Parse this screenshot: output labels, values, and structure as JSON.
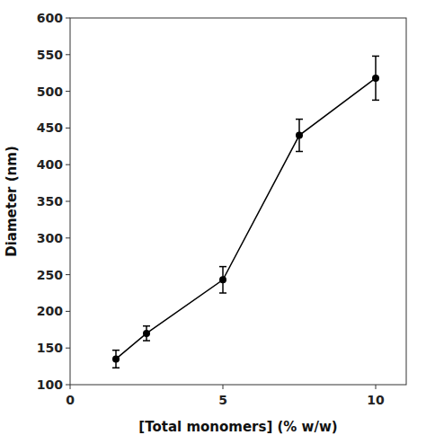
{
  "chart_data": {
    "type": "line",
    "x": [
      1.5,
      2.5,
      5.0,
      7.5,
      10.0
    ],
    "values": [
      135,
      170,
      243,
      440,
      518
    ],
    "errors": [
      12,
      10,
      18,
      22,
      30
    ],
    "xlabel": "[Total monomers] (% w/w)",
    "ylabel": "Diameter (nm)",
    "xlim": [
      0,
      11
    ],
    "ylim": [
      100,
      600
    ],
    "xticks": [
      0,
      5,
      10
    ],
    "yticks": [
      100,
      150,
      200,
      250,
      300,
      350,
      400,
      450,
      500,
      550,
      600
    ],
    "color": "#000000",
    "marker": "circle",
    "grid": false
  }
}
